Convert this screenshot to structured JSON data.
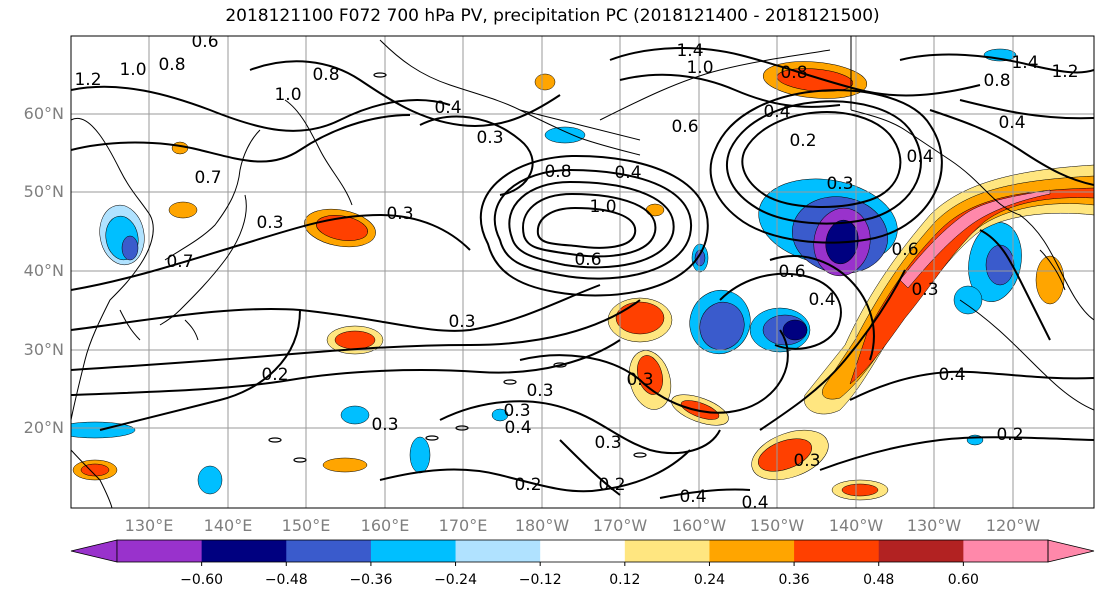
{
  "title": "2018121100 F072 700 hPa PV, precipitation PC (2018121400 - 2018121500)",
  "latitude_labels": [
    "60°N",
    "50°N",
    "40°N",
    "30°N",
    "20°N"
  ],
  "longitude_labels": [
    "130°E",
    "140°E",
    "150°E",
    "160°E",
    "170°E",
    "180°W",
    "170°W",
    "160°W",
    "150°W",
    "140°W",
    "130°W",
    "120°W"
  ],
  "colorbar": {
    "tick_labels": [
      "−0.60",
      "−0.48",
      "−0.36",
      "−0.24",
      "−0.12",
      "0.12",
      "0.24",
      "0.36",
      "0.48",
      "0.60"
    ],
    "colors": [
      "#9932cc",
      "#000080",
      "#3a5bcc",
      "#00bfff",
      "#b0e2ff",
      "#ffffff",
      "#ffe680",
      "#ffa500",
      "#ff4000",
      "#b22222",
      "#ff88aa"
    ]
  },
  "contour_labels": [
    "0.6",
    "0.8",
    "1.0",
    "1.2",
    "0.8",
    "1.0",
    "0.4",
    "0.3",
    "0.7",
    "0.3",
    "0.7",
    "0.3",
    "0.8",
    "1.0",
    "0.6",
    "0.4",
    "1.4",
    "1.0",
    "0.8",
    "0.4",
    "0.2",
    "0.6",
    "0.3",
    "0.4",
    "1.4",
    "1.2",
    "0.8",
    "0.4",
    "0.6",
    "0.3",
    "0.6",
    "0.4",
    "0.3",
    "0.3",
    "0.2",
    "0.3",
    "0.3",
    "0.4",
    "0.2",
    "0.3",
    "0.2",
    "0.4",
    "0.3",
    "0.4",
    "0.3",
    "0.4",
    "0.2"
  ]
}
